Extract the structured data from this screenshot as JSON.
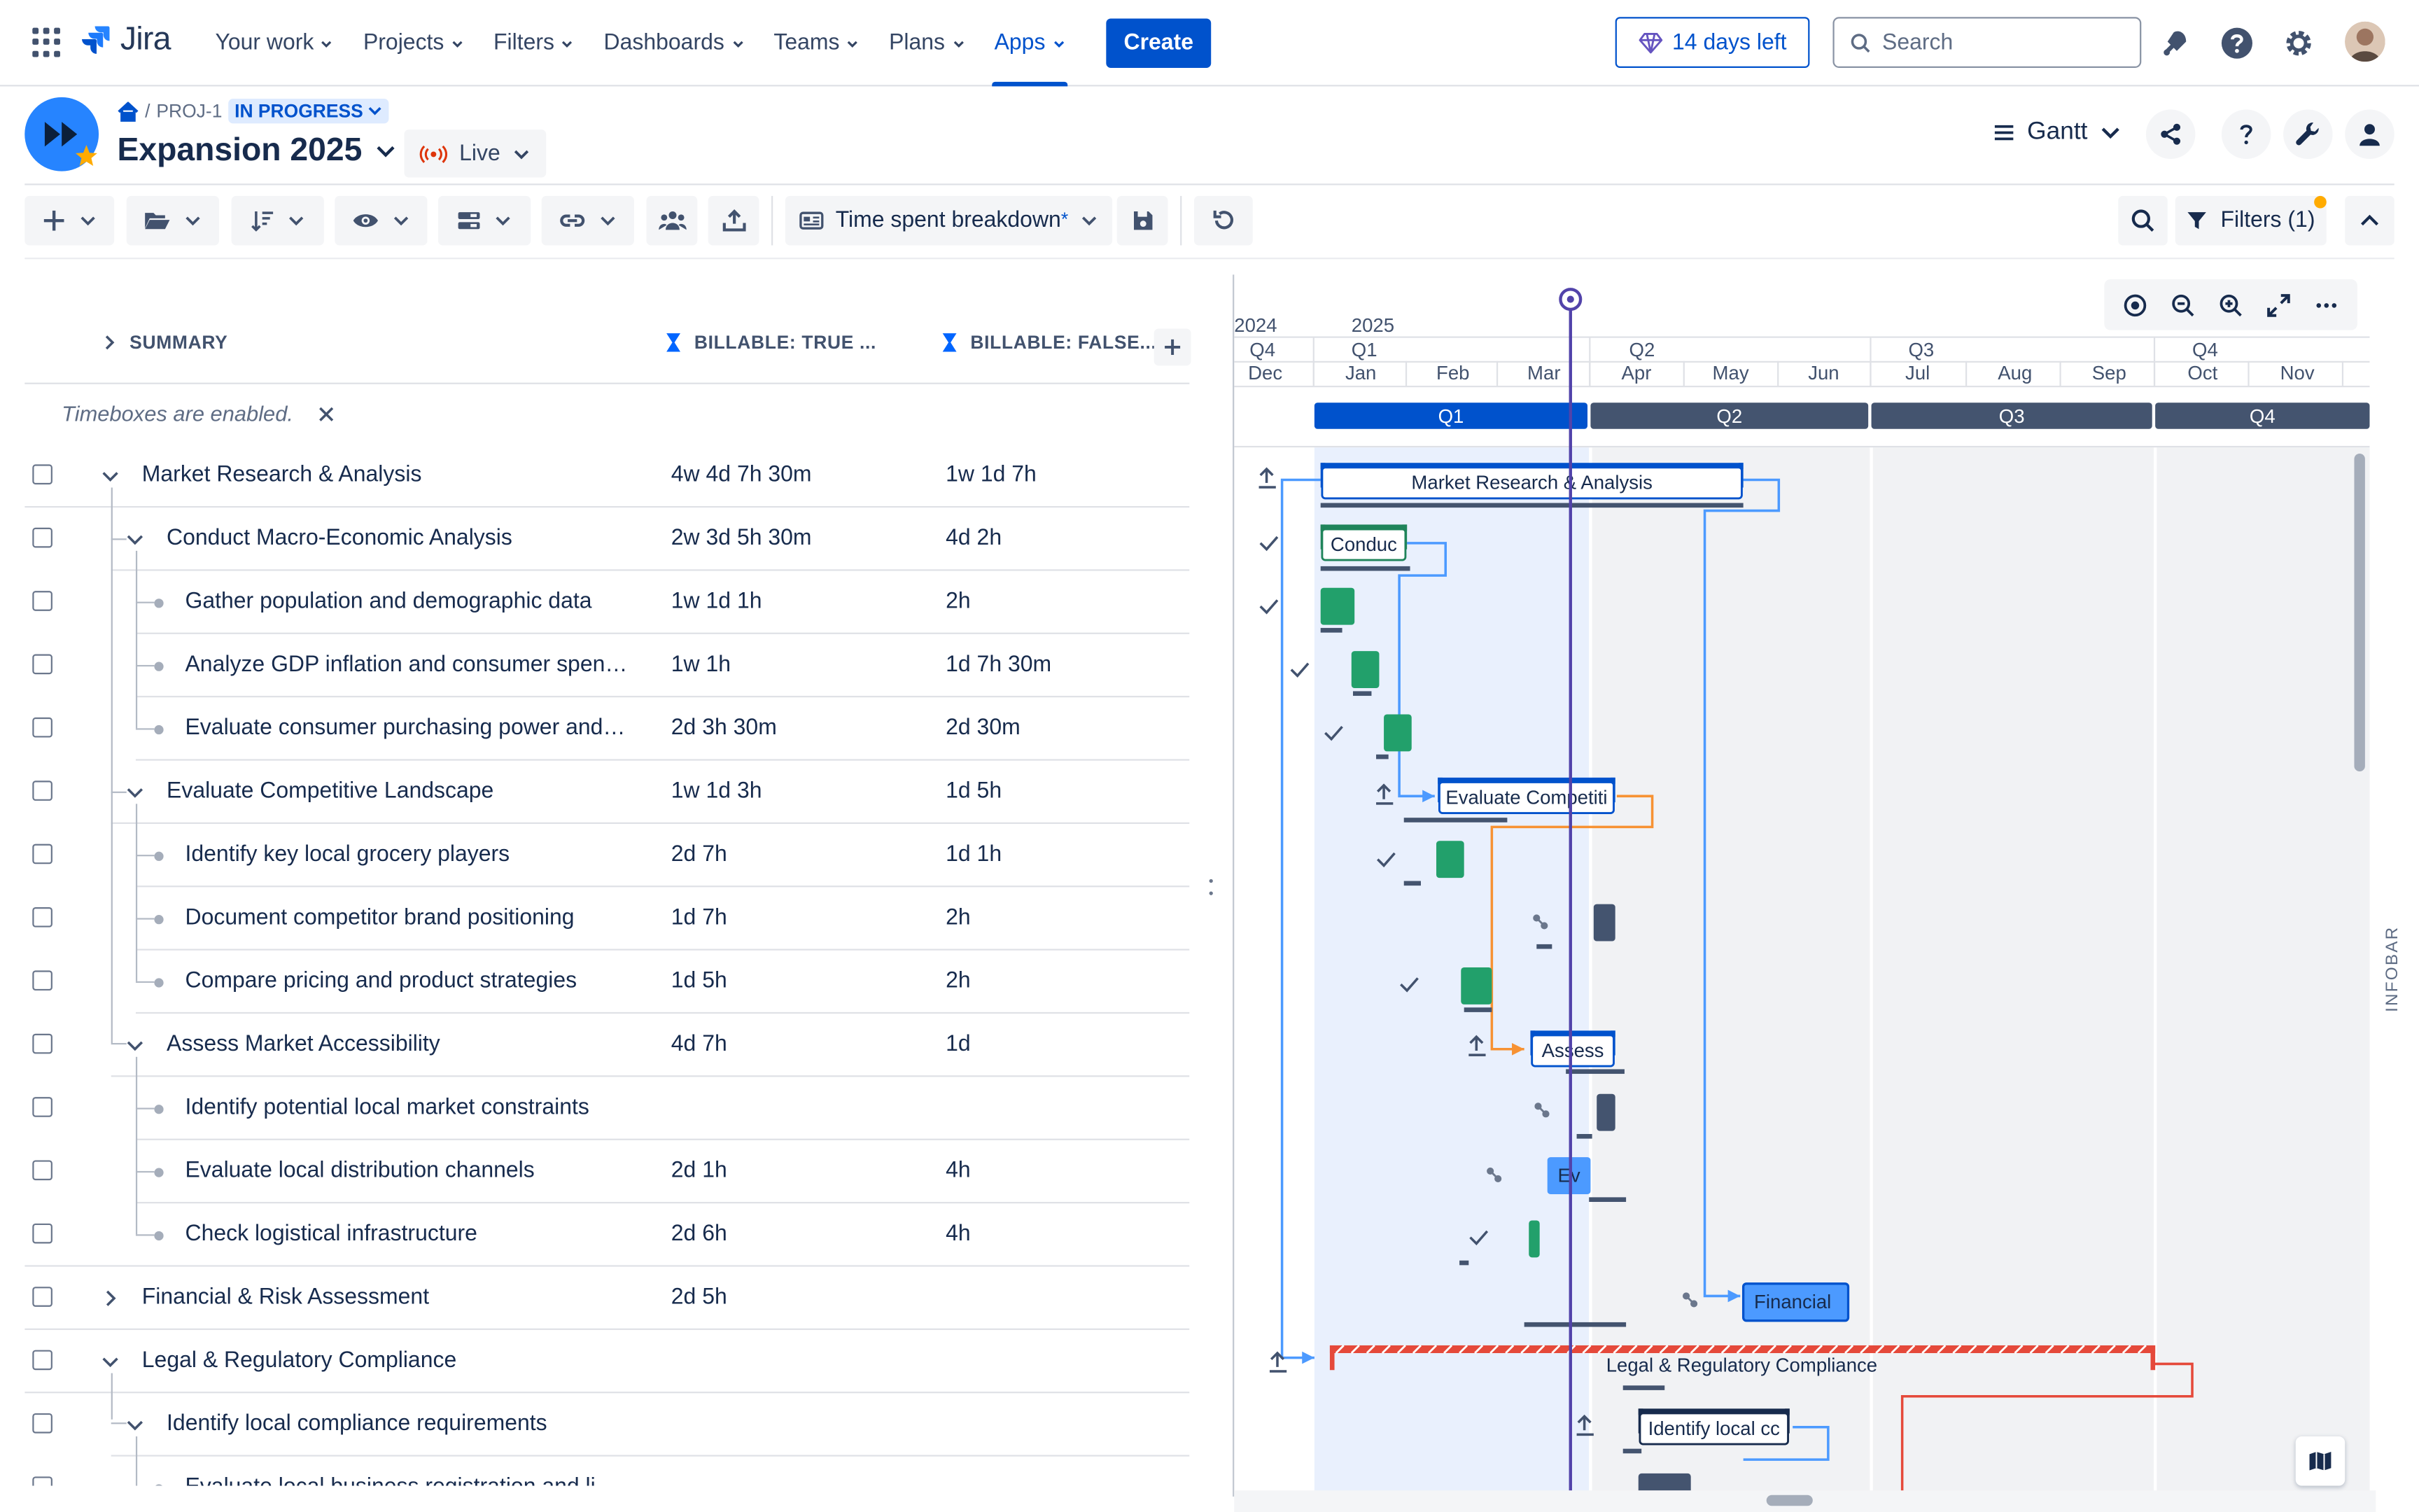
{
  "topnav": {
    "logo": "Jira",
    "items": [
      {
        "label": "Your work"
      },
      {
        "label": "Projects"
      },
      {
        "label": "Filters"
      },
      {
        "label": "Dashboards"
      },
      {
        "label": "Teams"
      },
      {
        "label": "Plans"
      },
      {
        "label": "Apps"
      }
    ],
    "active_item": "Apps",
    "create_label": "Create",
    "trial_label": "14 days left",
    "search_placeholder": "Search"
  },
  "project": {
    "breadcrumb_key": "PROJ-1",
    "status": "IN PROGRESS",
    "title": "Expansion 2025",
    "live_label": "Live",
    "view_label": "Gantt"
  },
  "toolbar": {
    "view_name": "Time spent breakdown",
    "modified_marker": "*",
    "filters_label": "Filters (1)"
  },
  "table": {
    "columns": [
      "SUMMARY",
      "BILLABLE: TRUE ...",
      "BILLABLE: FALSE..."
    ],
    "timebox_notice": "Timeboxes are enabled.",
    "rows": [
      {
        "title": "Market Research & Analysis",
        "billable_true": "4w 4d 7h 30m",
        "billable_false": "1w 1d 7h",
        "level": 0,
        "expander": "expanded"
      },
      {
        "title": "Conduct Macro-Economic Analysis",
        "billable_true": "2w 3d 5h 30m",
        "billable_false": "4d 2h",
        "level": 1,
        "expander": "expanded"
      },
      {
        "title": "Gather population and demographic data",
        "billable_true": "1w 1d 1h",
        "billable_false": "2h",
        "level": 2,
        "expander": "leaf"
      },
      {
        "title": "Analyze GDP inflation and consumer spen…",
        "billable_true": "1w 1h",
        "billable_false": "1d 7h 30m",
        "level": 2,
        "expander": "leaf"
      },
      {
        "title": "Evaluate consumer purchasing power and…",
        "billable_true": "2d 3h 30m",
        "billable_false": "2d 30m",
        "level": 2,
        "expander": "leaf"
      },
      {
        "title": "Evaluate Competitive Landscape",
        "billable_true": "1w 1d 3h",
        "billable_false": "1d 5h",
        "level": 1,
        "expander": "expanded"
      },
      {
        "title": "Identify key local grocery players",
        "billable_true": "2d 7h",
        "billable_false": "1d 1h",
        "level": 2,
        "expander": "leaf"
      },
      {
        "title": "Document competitor brand positioning",
        "billable_true": "1d 7h",
        "billable_false": "2h",
        "level": 2,
        "expander": "leaf"
      },
      {
        "title": "Compare pricing and product strategies",
        "billable_true": "1d 5h",
        "billable_false": "2h",
        "level": 2,
        "expander": "leaf"
      },
      {
        "title": "Assess Market Accessibility",
        "billable_true": "4d 7h",
        "billable_false": "1d",
        "level": 1,
        "expander": "expanded"
      },
      {
        "title": "Identify potential local market constraints",
        "billable_true": "",
        "billable_false": "",
        "level": 2,
        "expander": "leaf"
      },
      {
        "title": "Evaluate local distribution channels",
        "billable_true": "2d 1h",
        "billable_false": "4h",
        "level": 2,
        "expander": "leaf"
      },
      {
        "title": "Check logistical infrastructure",
        "billable_true": "2d 6h",
        "billable_false": "4h",
        "level": 2,
        "expander": "leaf"
      },
      {
        "title": "Financial & Risk Assessment",
        "billable_true": "2d 5h",
        "billable_false": "",
        "level": 0,
        "expander": "collapsed"
      },
      {
        "title": "Legal & Regulatory Compliance",
        "billable_true": "",
        "billable_false": "",
        "level": 0,
        "expander": "expanded"
      },
      {
        "title": "Identify local compliance requirements",
        "billable_true": "",
        "billable_false": "",
        "level": 1,
        "expander": "expanded"
      },
      {
        "title": "Evaluate local business registration and li…",
        "billable_true": "",
        "billable_false": "",
        "level": 2,
        "expander": "leaf"
      }
    ]
  },
  "gantt": {
    "years": [
      "2024",
      "2025"
    ],
    "quarter_labels": [
      "Q4",
      "Q1",
      "Q2",
      "Q3",
      "Q4"
    ],
    "months": [
      "Dec",
      "Jan",
      "Feb",
      "Mar",
      "Apr",
      "May",
      "Jun",
      "Jul",
      "Aug",
      "Sep",
      "Oct",
      "Nov"
    ],
    "timebox_quarters": [
      "Q1",
      "Q2",
      "Q3",
      "Q4"
    ],
    "bar_labels": {
      "market_research": "Market Research & Analysis",
      "conduct": "Conduc",
      "evaluate_competitive": "Evaluate Competiti",
      "assess": "Assess",
      "evaluate_short": "Ev",
      "financial": "Financial",
      "legal": "Legal & Regulatory Compliance",
      "identify_local": "Identify local cc"
    },
    "infobar_label": "INFOBAR",
    "colors": {
      "primary": "#0052CC",
      "done": "#22A06B",
      "todo": "#44546F",
      "in_progress": "#4C9AFF",
      "critical": "#E5493A",
      "timebox_current": "#E9F0FD",
      "timebox_other": "#F1F2F4",
      "today_line": "#5243AA",
      "dependency": "#4C9AFF",
      "dependency_alt": "#F79233"
    }
  }
}
